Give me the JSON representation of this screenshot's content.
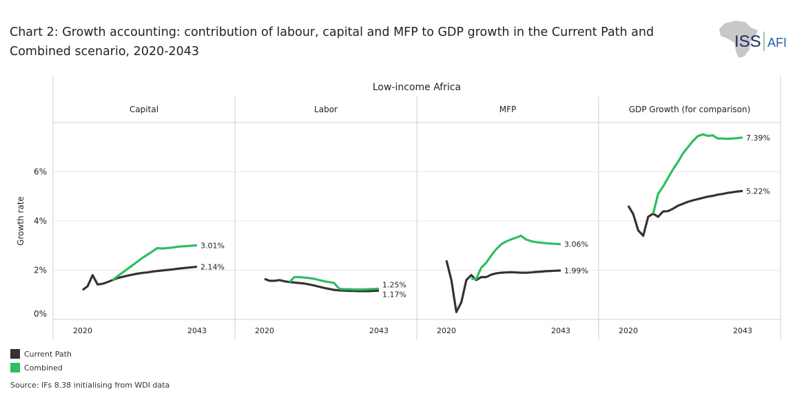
{
  "title": "Chart 2: Growth accounting: contribution of labour, capital and MFP to GDP growth in the Current Path and Combined scenario, 2020-2043",
  "logo": {
    "text_left": "ISS",
    "text_right": "AFI"
  },
  "colors": {
    "current_path": "#333333",
    "combined": "#2dbe60",
    "grid": "#e6e6e6",
    "border": "#cccccc"
  },
  "source": "Source: IFs 8.38 initialising from WDI data",
  "legend": [
    {
      "label": "Current Path",
      "color": "#333333"
    },
    {
      "label": "Combined",
      "color": "#2dbe60"
    }
  ],
  "chart_data": {
    "type": "line",
    "group_title": "Low-income Africa",
    "ylabel": "Growth rate",
    "ylim": [
      0,
      8
    ],
    "yticks": [
      {
        "v": 0,
        "label": "0%"
      },
      {
        "v": 2,
        "label": "2%"
      },
      {
        "v": 4,
        "label": "4%"
      },
      {
        "v": 6,
        "label": "6%"
      }
    ],
    "x": [
      2020,
      2021,
      2022,
      2023,
      2024,
      2025,
      2026,
      2027,
      2028,
      2029,
      2030,
      2031,
      2032,
      2033,
      2034,
      2035,
      2036,
      2037,
      2038,
      2039,
      2040,
      2041,
      2042,
      2043
    ],
    "xtick_labels": [
      "2020",
      "2043"
    ],
    "grid": true,
    "legend_position": "bottom-left",
    "panels": [
      {
        "title": "Capital",
        "series": [
          {
            "name": "Current Path",
            "end_label": "2.14%",
            "values": [
              1.2,
              1.35,
              1.8,
              1.42,
              1.45,
              1.52,
              1.6,
              1.68,
              1.73,
              1.78,
              1.82,
              1.86,
              1.89,
              1.91,
              1.94,
              1.97,
              1.99,
              2.01,
              2.03,
              2.06,
              2.08,
              2.1,
              2.12,
              2.14
            ]
          },
          {
            "name": "Combined",
            "end_label": "3.01%",
            "values": [
              null,
              null,
              null,
              null,
              null,
              null,
              1.6,
              1.75,
              1.9,
              2.05,
              2.2,
              2.35,
              2.5,
              2.63,
              2.76,
              2.9,
              2.88,
              2.9,
              2.92,
              2.95,
              2.97,
              2.98,
              3.0,
              3.01
            ]
          }
        ]
      },
      {
        "title": "Labor",
        "series": [
          {
            "name": "Current Path",
            "end_label": "1.17%",
            "values": [
              1.65,
              1.57,
              1.57,
              1.6,
              1.55,
              1.52,
              1.5,
              1.48,
              1.46,
              1.42,
              1.38,
              1.33,
              1.28,
              1.24,
              1.2,
              1.18,
              1.17,
              1.16,
              1.16,
              1.15,
              1.15,
              1.15,
              1.16,
              1.17
            ]
          },
          {
            "name": "Combined",
            "end_label": "1.25%",
            "values": [
              null,
              null,
              null,
              null,
              null,
              1.52,
              1.72,
              1.72,
              1.7,
              1.68,
              1.65,
              1.6,
              1.55,
              1.52,
              1.48,
              1.25,
              1.23,
              1.23,
              1.22,
              1.22,
              1.22,
              1.23,
              1.24,
              1.25
            ]
          }
        ]
      },
      {
        "title": "MFP",
        "series": [
          {
            "name": "Current Path",
            "end_label": "1.99%",
            "values": [
              2.4,
              1.6,
              0.3,
              0.7,
              1.6,
              1.8,
              1.6,
              1.72,
              1.72,
              1.82,
              1.87,
              1.9,
              1.91,
              1.92,
              1.91,
              1.9,
              1.9,
              1.91,
              1.93,
              1.94,
              1.96,
              1.97,
              1.98,
              1.99
            ]
          },
          {
            "name": "Combined",
            "end_label": "3.06%",
            "values": [
              null,
              null,
              null,
              null,
              null,
              1.65,
              1.65,
              2.1,
              2.3,
              2.6,
              2.85,
              3.05,
              3.17,
              3.25,
              3.32,
              3.4,
              3.25,
              3.18,
              3.14,
              3.12,
              3.1,
              3.08,
              3.07,
              3.06
            ]
          }
        ]
      },
      {
        "title": "GDP Growth (for comparison)",
        "series": [
          {
            "name": "Current Path",
            "end_label": "5.22%",
            "values": [
              4.62,
              4.28,
              3.62,
              3.4,
              4.17,
              4.3,
              4.17,
              4.39,
              4.4,
              4.5,
              4.62,
              4.7,
              4.78,
              4.84,
              4.89,
              4.94,
              4.99,
              5.02,
              5.07,
              5.1,
              5.14,
              5.17,
              5.2,
              5.22
            ]
          },
          {
            "name": "Combined",
            "end_label": "7.39%",
            "values": [
              null,
              null,
              null,
              null,
              null,
              4.3,
              5.1,
              5.4,
              5.75,
              6.1,
              6.4,
              6.75,
              7.0,
              7.25,
              7.45,
              7.52,
              7.46,
              7.48,
              7.35,
              7.35,
              7.34,
              7.35,
              7.37,
              7.39
            ]
          }
        ]
      }
    ]
  }
}
